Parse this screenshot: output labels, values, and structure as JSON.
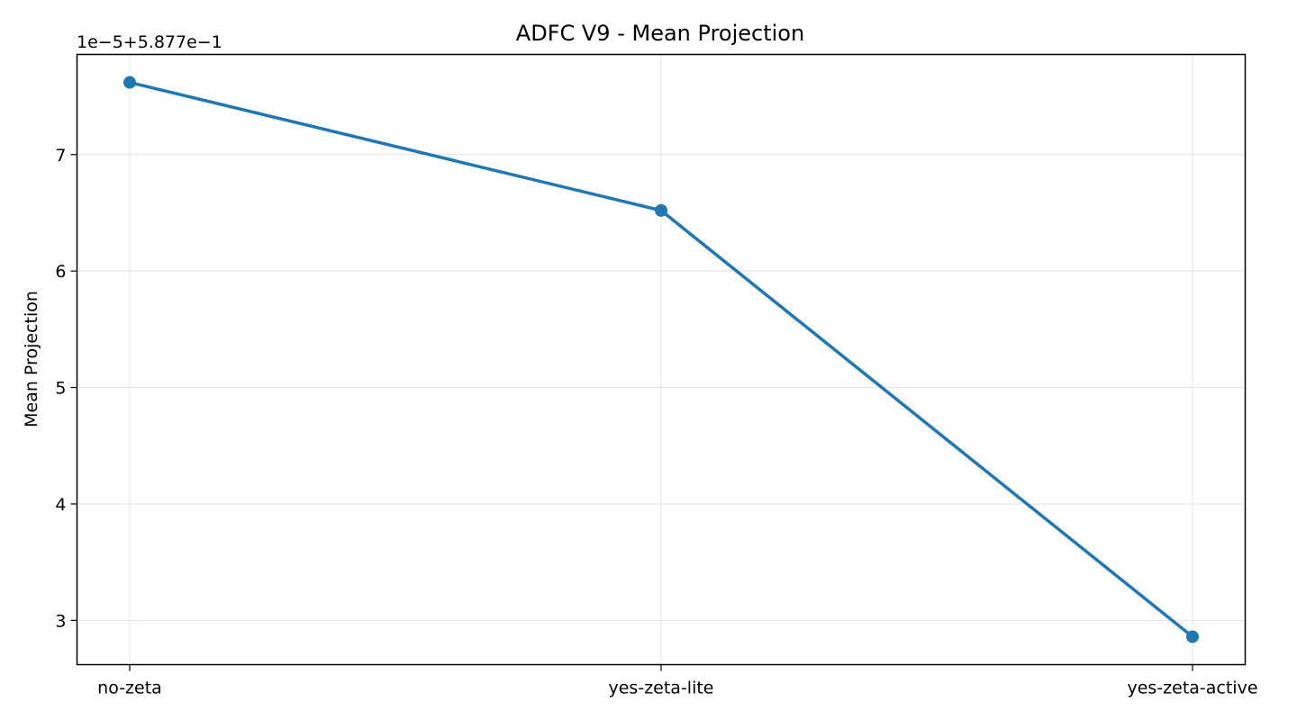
{
  "chart_data": {
    "type": "line",
    "title": "ADFC V9 - Mean Projection",
    "xlabel": "",
    "ylabel": "Mean Projection",
    "y_offset_label": "1e−5+5.877e−1",
    "categories": [
      "no-zeta",
      "yes-zeta-lite",
      "yes-zeta-active"
    ],
    "series": [
      {
        "values": [
          7.62,
          6.52,
          2.86
        ],
        "color": "#1f77b4",
        "marker": "circle"
      }
    ],
    "yticks": [
      3,
      4,
      5,
      6,
      7
    ],
    "ytick_labels": [
      "3",
      "4",
      "5",
      "6",
      "7"
    ],
    "ylim": [
      2.62,
      7.86
    ],
    "grid": true,
    "legend": "none"
  }
}
